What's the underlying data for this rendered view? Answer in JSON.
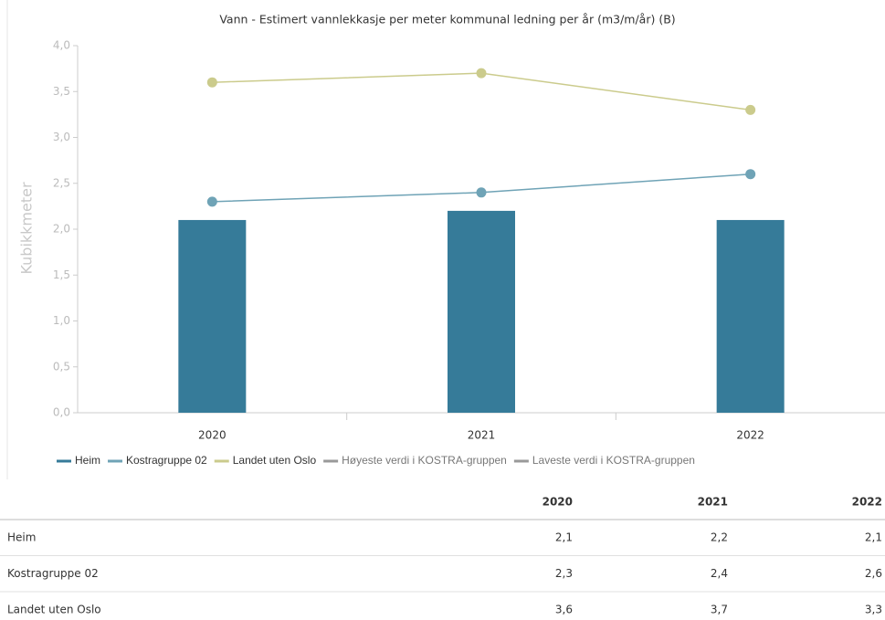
{
  "chart_data": {
    "type": "bar",
    "title": "Vann - Estimert vannlekkasje per meter kommunal ledning per år (m3/m/år) (B)",
    "y_label": "Kubikkmeter",
    "categories": [
      "2020",
      "2021",
      "2022"
    ],
    "ylim": [
      0,
      4
    ],
    "yticks": [
      {
        "value": 0,
        "label": "0,0"
      },
      {
        "value": 0.5,
        "label": "0,5"
      },
      {
        "value": 1,
        "label": "1,0"
      },
      {
        "value": 1.5,
        "label": "1,5"
      },
      {
        "value": 2,
        "label": "2,0"
      },
      {
        "value": 2.5,
        "label": "2,5"
      },
      {
        "value": 3,
        "label": "3,0"
      },
      {
        "value": 3.5,
        "label": "3,5"
      },
      {
        "value": 4,
        "label": "4,0"
      }
    ],
    "grid": false,
    "legend": "bottom",
    "series": [
      {
        "name": "Heim",
        "kind": "bar",
        "color": "#367b99",
        "values": [
          2.1,
          2.2,
          2.1
        ],
        "value_labels": [
          "2,1",
          "2,2",
          "2,1"
        ]
      },
      {
        "name": "Kostragruppe 02",
        "kind": "line",
        "color": "#6fa3b6",
        "values": [
          2.3,
          2.4,
          2.6
        ],
        "value_labels": [
          "2,3",
          "2,4",
          "2,6"
        ]
      },
      {
        "name": "Landet uten Oslo",
        "kind": "line",
        "color": "#cbcb8c",
        "values": [
          3.6,
          3.7,
          3.3
        ],
        "value_labels": [
          "3,6",
          "3,7",
          "3,3"
        ]
      },
      {
        "name": "Høyeste verdi i KOSTRA-gruppen",
        "kind": "line",
        "color": "#999999",
        "values": [
          null,
          null,
          null
        ]
      },
      {
        "name": "Laveste verdi i KOSTRA-gruppen",
        "kind": "line",
        "color": "#999999",
        "values": [
          null,
          null,
          null
        ]
      }
    ]
  }
}
